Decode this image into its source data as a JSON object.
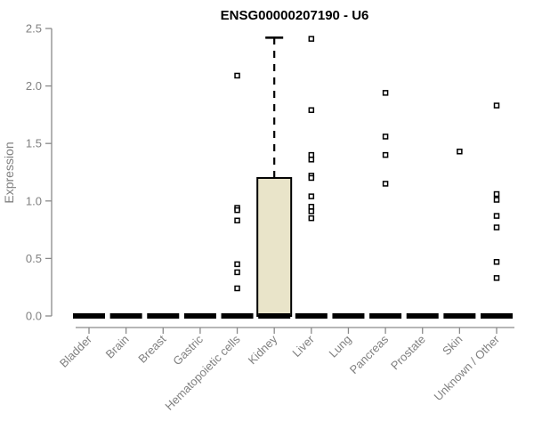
{
  "chart_data": {
    "type": "boxplot",
    "title": "ENSG00000207190 - U6",
    "ylabel": "Expression",
    "xlabel": "",
    "ylim": [
      0,
      2.5
    ],
    "yticks": [
      "0.0",
      "0.5",
      "1.0",
      "1.5",
      "2.0",
      "2.5"
    ],
    "grid": false,
    "legend": "none",
    "categories": [
      "Bladder",
      "Brain",
      "Breast",
      "Gastric",
      "Hematopoietic cells",
      "Kidney",
      "Liver",
      "Lung",
      "Pancreas",
      "Prostate",
      "Skin",
      "Unknown / Other"
    ],
    "boxes": [
      {
        "category": "Bladder",
        "q1": 0,
        "median": 0,
        "q3": 0,
        "whisker_low": 0,
        "whisker_high": 0,
        "outliers": []
      },
      {
        "category": "Brain",
        "q1": 0,
        "median": 0,
        "q3": 0,
        "whisker_low": 0,
        "whisker_high": 0,
        "outliers": []
      },
      {
        "category": "Breast",
        "q1": 0,
        "median": 0,
        "q3": 0,
        "whisker_low": 0,
        "whisker_high": 0,
        "outliers": []
      },
      {
        "category": "Gastric",
        "q1": 0,
        "median": 0,
        "q3": 0,
        "whisker_low": 0,
        "whisker_high": 0,
        "outliers": []
      },
      {
        "category": "Hematopoietic cells",
        "q1": 0,
        "median": 0,
        "q3": 0,
        "whisker_low": 0,
        "whisker_high": 0,
        "outliers": [
          2.09,
          0.94,
          0.92,
          0.83,
          0.45,
          0.38,
          0.24
        ]
      },
      {
        "category": "Kidney",
        "q1": 0,
        "median": 0,
        "q3": 1.2,
        "whisker_low": 0,
        "whisker_high": 2.42,
        "outliers": []
      },
      {
        "category": "Liver",
        "q1": 0,
        "median": 0,
        "q3": 0,
        "whisker_low": 0,
        "whisker_high": 0,
        "outliers": [
          2.41,
          1.79,
          1.4,
          1.36,
          1.22,
          1.2,
          1.04,
          0.95,
          0.91,
          0.85
        ]
      },
      {
        "category": "Lung",
        "q1": 0,
        "median": 0,
        "q3": 0,
        "whisker_low": 0,
        "whisker_high": 0,
        "outliers": []
      },
      {
        "category": "Pancreas",
        "q1": 0,
        "median": 0,
        "q3": 0,
        "whisker_low": 0,
        "whisker_high": 0,
        "outliers": [
          1.94,
          1.56,
          1.4,
          1.15
        ]
      },
      {
        "category": "Prostate",
        "q1": 0,
        "median": 0,
        "q3": 0,
        "whisker_low": 0,
        "whisker_high": 0,
        "outliers": []
      },
      {
        "category": "Skin",
        "q1": 0,
        "median": 0,
        "q3": 0,
        "whisker_low": 0,
        "whisker_high": 0,
        "outliers": [
          1.43
        ]
      },
      {
        "category": "Unknown / Other",
        "q1": 0,
        "median": 0,
        "q3": 0,
        "whisker_low": 0,
        "whisker_high": 0,
        "outliers": [
          1.83,
          1.06,
          1.01,
          0.87,
          0.77,
          0.47,
          0.33
        ]
      }
    ],
    "colors": {
      "background": "#ffffff",
      "box_fill": "#E9E4C9",
      "box_stroke": "#000000",
      "median": "#000000",
      "whisker": "#000000",
      "outlier_stroke": "#000000",
      "outlier_fill": "#ffffff",
      "axis": "#8a8a8a",
      "tick_label": "#808080",
      "title": "#000000"
    }
  }
}
